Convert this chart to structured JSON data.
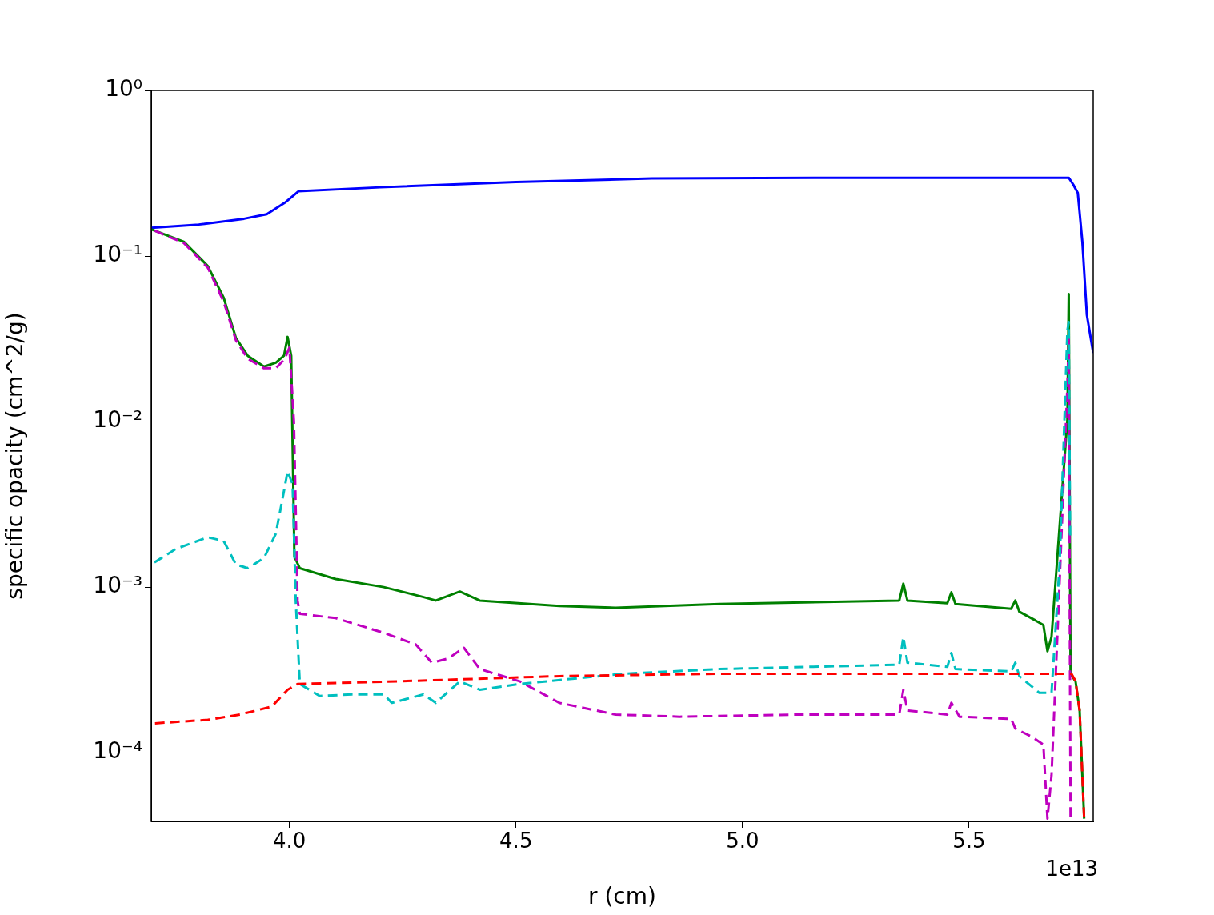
{
  "chart_data": {
    "type": "line",
    "xlabel": "r (cm)",
    "ylabel": "specific opacity (cm^2/g)",
    "log": "y",
    "grid": false,
    "legend": false,
    "marker": "none",
    "xlim": [
      3.695,
      5.774
    ],
    "xticks": [
      {
        "value": 4,
        "label": "4.0"
      },
      {
        "value": 4.5,
        "label": "4.5"
      },
      {
        "value": 5,
        "label": "5.0"
      },
      {
        "value": 5.5,
        "label": "5.5"
      }
    ],
    "ylim": [
      3.85e-05,
      1
    ],
    "yticks": [
      {
        "value": 0.0001,
        "label": "10⁻⁴"
      },
      {
        "value": 0.001,
        "label": "10⁻³"
      },
      {
        "value": 0.01,
        "label": "10⁻²"
      },
      {
        "value": 0.1,
        "label": "10⁻¹"
      },
      {
        "value": 1,
        "label": "10⁰"
      }
    ],
    "annotations": [
      "1e13"
    ],
    "series": [
      {
        "color": "#0000ff",
        "line_style": "solid",
        "x": [
          3.695,
          3.8,
          3.9,
          3.95,
          3.99,
          4.02,
          4.2,
          4.5,
          4.8,
          5.2,
          5.72,
          5.73,
          5.74,
          5.75,
          5.76,
          5.774
        ],
        "values": [
          0.148,
          0.155,
          0.168,
          0.179,
          0.21,
          0.246,
          0.26,
          0.28,
          0.294,
          0.297,
          0.297,
          0.27,
          0.24,
          0.122,
          0.044,
          0.026
        ]
      },
      {
        "color": "#008000",
        "line_style": "solid",
        "x": [
          3.695,
          3.767,
          3.82,
          3.855,
          3.882,
          3.908,
          3.944,
          3.97,
          3.988,
          3.996,
          4.004,
          4.011,
          4.023,
          4.102,
          4.208,
          4.296,
          4.323,
          4.376,
          4.42,
          4.596,
          4.72,
          4.949,
          5.346,
          5.355,
          5.364,
          5.452,
          5.461,
          5.47,
          5.593,
          5.602,
          5.611,
          5.646,
          5.664,
          5.673,
          5.682,
          5.717,
          5.72,
          5.724,
          5.735,
          5.744,
          5.754
        ],
        "values": [
          0.145,
          0.122,
          0.087,
          0.056,
          0.032,
          0.025,
          0.0215,
          0.0227,
          0.025,
          0.0325,
          0.025,
          0.00153,
          0.0013,
          0.00112,
          0.001,
          0.00087,
          0.00083,
          0.00094,
          0.00083,
          0.00077,
          0.00075,
          0.00079,
          0.00083,
          0.00105,
          0.00083,
          0.0008,
          0.00093,
          0.00079,
          0.00074,
          0.00083,
          0.00071,
          0.00063,
          0.00059,
          0.00041,
          0.0005,
          0.0103,
          0.059,
          0.0003,
          0.00027,
          0.00018,
          4e-05
        ]
      },
      {
        "color": "#bf00bf",
        "line_style": "dashed",
        "x": [
          3.695,
          3.767,
          3.82,
          3.855,
          3.882,
          3.908,
          3.944,
          3.97,
          3.99,
          4.0,
          4.01,
          4.018,
          4.023,
          4.102,
          4.208,
          4.279,
          4.314,
          4.35,
          4.385,
          4.42,
          4.508,
          4.596,
          4.72,
          4.861,
          5.126,
          5.346,
          5.355,
          5.364,
          5.452,
          5.461,
          5.479,
          5.593,
          5.602,
          5.638,
          5.664,
          5.673,
          5.682,
          5.7,
          5.717,
          5.72,
          5.724
        ],
        "values": [
          0.145,
          0.12,
          0.085,
          0.053,
          0.031,
          0.024,
          0.021,
          0.021,
          0.024,
          0.028,
          0.01,
          0.00083,
          0.00069,
          0.00065,
          0.00053,
          0.00045,
          0.00035,
          0.00037,
          0.00043,
          0.00032,
          0.00027,
          0.0002,
          0.00017,
          0.000165,
          0.00017,
          0.00017,
          0.00024,
          0.00018,
          0.00017,
          0.0002,
          0.000165,
          0.00016,
          0.00014,
          0.000125,
          0.000112,
          4e-05,
          7.3e-05,
          0.0011,
          0.0163,
          0.0316,
          4e-05
        ]
      },
      {
        "color": "#00bfbf",
        "line_style": "dashed",
        "x": [
          3.695,
          3.749,
          3.82,
          3.855,
          3.882,
          3.908,
          3.944,
          3.97,
          3.988,
          3.996,
          4.007,
          4.014,
          4.023,
          4.067,
          4.138,
          4.208,
          4.226,
          4.296,
          4.323,
          4.376,
          4.42,
          4.508,
          4.738,
          4.949,
          5.346,
          5.355,
          5.364,
          5.452,
          5.461,
          5.47,
          5.593,
          5.602,
          5.611,
          5.655,
          5.682,
          5.7,
          5.717,
          5.72,
          5.723
        ],
        "values": [
          0.00137,
          0.0017,
          0.002,
          0.0019,
          0.00137,
          0.0013,
          0.0015,
          0.0021,
          0.0038,
          0.005,
          0.0042,
          0.00083,
          0.00026,
          0.00022,
          0.000225,
          0.000225,
          0.0002,
          0.000225,
          0.0002,
          0.00027,
          0.00024,
          0.00026,
          0.0003,
          0.00032,
          0.00034,
          0.0005,
          0.00035,
          0.00033,
          0.0004,
          0.00032,
          0.00031,
          0.00035,
          0.00029,
          0.00023,
          0.00023,
          0.0014,
          0.0356,
          0.04,
          0.002
        ]
      },
      {
        "color": "#ff0000",
        "line_style": "dashed",
        "x": [
          3.695,
          3.82,
          3.891,
          3.961,
          3.996,
          4.018,
          4.244,
          4.596,
          4.949,
          5.726,
          5.735,
          5.744,
          5.754
        ],
        "values": [
          0.00015,
          0.000158,
          0.00017,
          0.00019,
          0.00024,
          0.00026,
          0.00027,
          0.00029,
          0.0003,
          0.0003,
          0.00027,
          0.00018,
          4e-05
        ]
      }
    ]
  }
}
